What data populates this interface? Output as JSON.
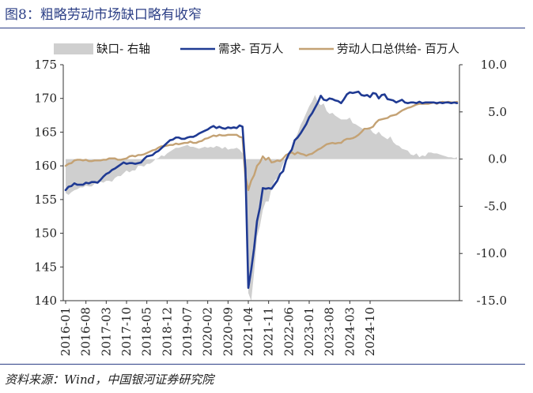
{
  "figure": {
    "title": "图8：粗略劳动市场缺口略有收窄",
    "source": "资料来源：Wind，中国银河证券研究院"
  },
  "chart_data": {
    "type": "line",
    "left_axis": {
      "range": [
        140,
        175
      ],
      "ticks": [
        "140",
        "145",
        "150",
        "155",
        "160",
        "165",
        "170",
        "175"
      ]
    },
    "right_axis": {
      "range": [
        -15,
        10
      ],
      "ticks": [
        "-15.0",
        "-10.0",
        "-5.0",
        "0.0",
        "5.0",
        "10.0"
      ]
    },
    "x_tick_labels": [
      "2016-01",
      "2016-08",
      "2017-03",
      "2017-10",
      "2018-05",
      "2018-12",
      "2019-07",
      "2020-02",
      "2020-09",
      "2021-04",
      "2021-11",
      "2022-06",
      "2023-01",
      "2023-08",
      "2024-03",
      "2024-10"
    ],
    "start_month": "2016-01",
    "end_month": "2024-12",
    "colors": {
      "gap": "#cfcfcf",
      "demand": "#1f3a93",
      "supply": "#c4a274"
    },
    "legend": [
      {
        "label": "缺口- 右轴",
        "color": "#cfcfcf",
        "kind": "area"
      },
      {
        "label": "需求- 百万人",
        "color": "#1f3a93",
        "kind": "line"
      },
      {
        "label": "劳动人口总供给- 百万人",
        "color": "#c4a274",
        "kind": "line"
      }
    ],
    "series": [
      {
        "name": "缺口- 右轴",
        "axis": "right",
        "style": "area",
        "values": [
          -3.6,
          -3.8,
          -3.5,
          -3.3,
          -3.2,
          -3.0,
          -3.0,
          -2.8,
          -2.9,
          -2.9,
          -2.6,
          -2.6,
          -2.4,
          -2.5,
          -2.3,
          -2.3,
          -2.4,
          -2.0,
          -1.8,
          -1.8,
          -1.5,
          -1.2,
          -1.4,
          -1.2,
          -1.2,
          -0.7,
          -0.7,
          -0.8,
          -0.5,
          -0.5,
          -0.3,
          0.0,
          0.1,
          0.4,
          0.3,
          0.6,
          0.8,
          1.0,
          1.2,
          1.2,
          1.3,
          1.4,
          1.5,
          1.3,
          1.3,
          1.2,
          1.1,
          1.2,
          1.3,
          1.2,
          1.3,
          1.2,
          1.4,
          1.3,
          1.1,
          1.3,
          1.0,
          1.1,
          1.1,
          1.2,
          1.0,
          0.6,
          -3.5,
          -14.2,
          -15.0,
          -12.0,
          -8.2,
          -7.1,
          -5.4,
          -4.5,
          -4.5,
          -3.1,
          -2.3,
          -2.0,
          -1.3,
          -0.5,
          0.2,
          0.6,
          1.0,
          2.1,
          2.7,
          3.6,
          4.2,
          4.9,
          5.6,
          6.1,
          6.8,
          6.0,
          5.7,
          5.9,
          5.1,
          4.8,
          4.9,
          4.6,
          4.4,
          4.2,
          4.2,
          4.2,
          4.4,
          3.8,
          3.7,
          3.5,
          3.3,
          3.1,
          3.1,
          3.2,
          2.8,
          2.6,
          2.9,
          2.5,
          2.3,
          2.1,
          2.4,
          1.8,
          1.5,
          1.4,
          1.1,
          1.0,
          0.9,
          0.5,
          0.4,
          0.6,
          0.2,
          0.4,
          0.3,
          0.7,
          0.7,
          0.6,
          0.6,
          0.5,
          0.4,
          0.3,
          0.2,
          0.2,
          0.1,
          0.2
        ]
      },
      {
        "name": "需求- 百万人",
        "axis": "left",
        "style": "line",
        "values": [
          156.4,
          156.9,
          157.0,
          157.4,
          157.2,
          157.2,
          157.2,
          157.5,
          157.4,
          157.6,
          157.6,
          157.5,
          157.9,
          158.4,
          158.8,
          159.0,
          159.4,
          159.6,
          159.9,
          160.2,
          160.5,
          160.3,
          160.4,
          160.4,
          160.3,
          160.4,
          160.5,
          161.0,
          161.4,
          161.5,
          161.6,
          162.0,
          162.2,
          162.6,
          163.0,
          163.4,
          163.8,
          163.9,
          164.2,
          164.2,
          164.0,
          164.0,
          164.2,
          164.3,
          164.3,
          164.5,
          164.8,
          165.0,
          165.2,
          165.4,
          165.7,
          165.9,
          165.6,
          165.8,
          165.6,
          165.5,
          165.7,
          165.6,
          165.7,
          165.6,
          166.0,
          165.8,
          159.6,
          141.9,
          144.6,
          147.8,
          151.8,
          153.8,
          156.7,
          156.6,
          156.7,
          156.6,
          157.2,
          157.8,
          158.8,
          159.2,
          160.8,
          161.8,
          162.4,
          163.8,
          164.2,
          164.8,
          165.5,
          166.2,
          167.2,
          167.8,
          168.6,
          169.4,
          170.4,
          169.8,
          169.7,
          170.0,
          169.9,
          169.7,
          169.6,
          169.3,
          169.9,
          170.6,
          170.9,
          170.8,
          170.9,
          171.0,
          170.5,
          170.4,
          170.5,
          170.2,
          170.8,
          170.7,
          170.0,
          170.5,
          170.6,
          169.9,
          169.8,
          169.7,
          169.4,
          169.6,
          169.8,
          169.4,
          169.3,
          169.4,
          169.4,
          169.3,
          169.5,
          169.3,
          169.4,
          169.4,
          169.4,
          169.4,
          169.3,
          169.4,
          169.3,
          169.4,
          169.4,
          169.3,
          169.4,
          169.3
        ]
      },
      {
        "name": "劳动人口总供给- 百万人",
        "axis": "left",
        "style": "line",
        "values": [
          160.0,
          160.3,
          160.4,
          160.8,
          160.9,
          160.9,
          160.8,
          160.9,
          160.7,
          160.7,
          160.8,
          160.8,
          160.8,
          160.9,
          160.9,
          161.1,
          161.1,
          161.1,
          160.9,
          160.9,
          161.0,
          161.1,
          161.4,
          161.5,
          161.4,
          161.6,
          161.6,
          161.7,
          161.9,
          162.1,
          162.3,
          162.4,
          162.7,
          162.9,
          162.9,
          163.0,
          163.1,
          163.1,
          163.3,
          163.2,
          163.3,
          163.4,
          163.4,
          163.6,
          163.4,
          163.4,
          163.6,
          163.7,
          164.0,
          164.1,
          164.3,
          164.5,
          164.4,
          164.6,
          164.5,
          164.5,
          164.6,
          164.6,
          164.6,
          164.6,
          164.3,
          164.2,
          158.5,
          156.4,
          157.8,
          158.6,
          160.0,
          160.5,
          161.4,
          160.9,
          161.2,
          160.5,
          160.6,
          160.8,
          160.7,
          161.1,
          161.6,
          161.8,
          162.0,
          161.7,
          162.0,
          161.8,
          161.7,
          161.5,
          161.7,
          161.8,
          162.1,
          162.4,
          162.6,
          162.9,
          163.2,
          163.3,
          163.4,
          163.3,
          163.4,
          163.4,
          163.8,
          164.0,
          164.0,
          164.1,
          164.3,
          164.6,
          165.0,
          165.5,
          165.5,
          165.6,
          165.8,
          166.4,
          166.8,
          166.9,
          167.0,
          167.1,
          167.4,
          167.5,
          167.6,
          167.9,
          168.2,
          168.4,
          168.6,
          168.7,
          168.9,
          169.1,
          169.2,
          169.2,
          169.2,
          169.2,
          169.3,
          169.4,
          169.2,
          169.4,
          169.5,
          169.4,
          169.5,
          169.4,
          169.4,
          169.5
        ]
      }
    ]
  }
}
